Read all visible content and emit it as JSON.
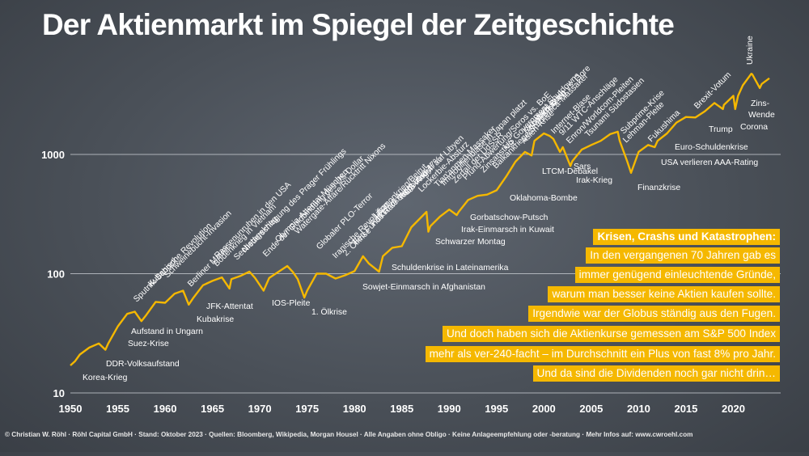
{
  "footer": "© Christian W. Röhl · Röhl Capital GmbH · Stand: Oktober 2023 · Quellen: Bloomberg, Wikipedia, Morgan Housel · Alle Angaben ohne Obligo · Keine Anlageempfehlung oder -beratung · Mehr Infos auf: www.cwroehl.com",
  "colors": {
    "accent": "#f5b800",
    "background": "#4a5058",
    "text": "#ffffff"
  },
  "info_box": {
    "heading": "Krisen, Crashs und Katastrophen:",
    "lines": [
      "In den vergangenen 70 Jahren gab es",
      "immer genügend einleuchtende Gründe,",
      "warum man besser keine Aktien kaufen sollte.",
      "Irgendwie war der Globus ständig aus den Fugen.",
      "Und doch haben sich die Aktienkurse gemessen am S&P 500 Index",
      "mehr als ver-240-facht – im Durchschnitt ein Plus von fast 8% pro Jahr.",
      "Und da sind die Dividenden noch gar nicht drin…"
    ]
  },
  "chart_data": {
    "type": "line",
    "title": "Der Aktienmarkt im Spiegel der Zeitgeschichte",
    "y_scale": "log",
    "ylim": [
      10,
      6000
    ],
    "xlim": [
      1950,
      2025
    ],
    "y_ticks": [
      10,
      100,
      1000
    ],
    "y_tick_labels": [
      "10",
      "100",
      "1000"
    ],
    "x_ticks": [
      1950,
      1955,
      1960,
      1965,
      1970,
      1975,
      1980,
      1985,
      1990,
      1995,
      2000,
      2005,
      2010,
      2015,
      2020
    ],
    "grid": "horizontal",
    "series": [
      {
        "name": "S&P 500",
        "x": [
          1950,
          1950.5,
          1951,
          1952,
          1953,
          1953.7,
          1954,
          1955,
          1956,
          1956.8,
          1957.5,
          1958,
          1959,
          1960,
          1961,
          1961.9,
          1962.5,
          1963,
          1964,
          1965,
          1966,
          1966.8,
          1967,
          1968,
          1968.9,
          1969.5,
          1970.4,
          1971,
          1972,
          1972.9,
          1973.5,
          1974,
          1974.7,
          1975,
          1976,
          1977,
          1978,
          1979,
          1980,
          1980.9,
          1981.5,
          1982.6,
          1983,
          1984,
          1985,
          1986,
          1987.6,
          1987.8,
          1988,
          1989,
          1990,
          1990.8,
          1991,
          1992,
          1993,
          1994,
          1995,
          1996,
          1997,
          1998,
          1998.7,
          1999,
          2000,
          2000.6,
          2001,
          2001.7,
          2002,
          2002.8,
          2003,
          2004,
          2005,
          2006,
          2007,
          2007.8,
          2008,
          2008.8,
          2009.2,
          2010,
          2011,
          2011.7,
          2012,
          2013,
          2014,
          2015,
          2016,
          2017,
          2018,
          2018.9,
          2019,
          2020,
          2020.2,
          2020.5,
          2021,
          2021.9,
          2022,
          2022.8,
          2023,
          2023.8
        ],
        "values": [
          17,
          18.5,
          21,
          24,
          26,
          23,
          26,
          36,
          46,
          48,
          40,
          45,
          58,
          57,
          68,
          72,
          55,
          63,
          80,
          87,
          93,
          75,
          90,
          96,
          104,
          92,
          72,
          92,
          104,
          116,
          103,
          90,
          63,
          72,
          100,
          100,
          91,
          97,
          105,
          140,
          122,
          104,
          140,
          165,
          170,
          245,
          330,
          225,
          250,
          300,
          345,
          310,
          330,
          415,
          450,
          460,
          500,
          650,
          870,
          1050,
          980,
          1300,
          1500,
          1430,
          1350,
          1050,
          1150,
          800,
          880,
          1100,
          1200,
          1300,
          1480,
          1550,
          1300,
          870,
          700,
          1050,
          1200,
          1150,
          1300,
          1500,
          1850,
          2060,
          2040,
          2300,
          2700,
          2400,
          2600,
          3100,
          2400,
          3100,
          3800,
          4750,
          4700,
          3600,
          3900,
          4350
        ]
      }
    ],
    "annotations": [
      {
        "text": "Korea-Krieg",
        "year": 1950.5
      },
      {
        "text": "DDR-Volksaufstand",
        "year": 1953.4
      },
      {
        "text": "Suez-Krise",
        "year": 1956.6
      },
      {
        "text": "Aufstand in Ungarn",
        "year": 1956.9
      },
      {
        "text": "Sputnik-Schock",
        "year": 1957.8
      },
      {
        "text": "Kubanische Revolution",
        "year": 1959.0
      },
      {
        "text": "Schweinebucht-Invasion",
        "year": 1961.3
      },
      {
        "text": "Berliner Mauer",
        "year": 1961.7
      },
      {
        "text": "Kubakrise",
        "year": 1962.8
      },
      {
        "text": "JFK-Attentat",
        "year": 1963.9
      },
      {
        "text": "Bodenkrieg in Vietnam",
        "year": 1965.1
      },
      {
        "text": "Rassenunruhen in den USA",
        "year": 1966.6
      },
      {
        "text": "Sechstagekrieg",
        "year": 1967.4
      },
      {
        "text": "Niederschlagung des Prager Frühlings",
        "year": 1968.6
      },
      {
        "text": "Ende der Goldbindung des US-Dollar",
        "year": 1971.6
      },
      {
        "text": "Olympia-Attentat München",
        "year": 1972.7
      },
      {
        "text": "Watergate-Affäre/Rücktritt Nixons",
        "year": 1974.6
      },
      {
        "text": "1. Ölkrise",
        "year": 1974.0
      },
      {
        "text": "IOS-Pleite",
        "year": 1970.5
      },
      {
        "text": "Globaler PLO-Terror",
        "year": 1976.0
      },
      {
        "text": "Iranische Revolution",
        "year": 1979.0
      },
      {
        "text": "2. Ölkrise",
        "year": 1979.7
      },
      {
        "text": "Fed Funds Rate steigt über 17%",
        "year": 1981.0
      },
      {
        "text": "Falklandkrieg",
        "year": 1982.3
      },
      {
        "text": "Libanonkrieg/Beirut",
        "year": 1982.9
      },
      {
        "text": "Sowjet-Einmarsch in Afghanistan",
        "year": 1980.0
      },
      {
        "text": "Schuldenkrise in Lateinamerika",
        "year": 1982.7
      },
      {
        "text": "Tschernobyl",
        "year": 1986.3
      },
      {
        "text": "US-Angriff auf Libyen",
        "year": 1986.6
      },
      {
        "text": "Schwarzer Montag",
        "year": 1987.8
      },
      {
        "text": "Lockerbie-Absturz",
        "year": 1988.9
      },
      {
        "text": "Tian'anmen-Massaker",
        "year": 1989.4
      },
      {
        "text": "Immobilienblase in Japan platzt",
        "year": 1990.0
      },
      {
        "text": "Zerfall der UdSSR",
        "year": 1991.3
      },
      {
        "text": "Irak-Einmarsch in Kuwait",
        "year": 1990.6
      },
      {
        "text": "Gorbatschow-Putsch",
        "year": 1991.6
      },
      {
        "text": "Pfund-Abwertung/Soros vs. BoE",
        "year": 1992.7
      },
      {
        "text": "Zinsanstieg",
        "year": 1994.2
      },
      {
        "text": "Balkankriege/Srebrenica-Massaker",
        "year": 1995.5
      },
      {
        "text": "Oklahoma-Bombe",
        "year": 1995.3
      },
      {
        "text": "US Government Shutdowns",
        "year": 1996.0
      },
      {
        "text": "Asien-Krise",
        "year": 1997.6
      },
      {
        "text": "Rubel-Krise",
        "year": 1998.6
      },
      {
        "text": "Kosovo-Krieg",
        "year": 1999.2
      },
      {
        "text": "Wahl Bush vs. Gore",
        "year": 2000.8
      },
      {
        "text": "LTCM-Debakel",
        "year": 1998.7
      },
      {
        "text": "Internet-Blase",
        "year": 2000.2
      },
      {
        "text": "9/11 WTC-Anschläge",
        "year": 2001.7
      },
      {
        "text": "Enron/Worldcom-Pleiten",
        "year": 2002.2
      },
      {
        "text": "Sars",
        "year": 2003.2
      },
      {
        "text": "Irak-Krieg",
        "year": 2003.2
      },
      {
        "text": "Tsunami Südostasien",
        "year": 2004.9
      },
      {
        "text": "Subprime-Krise",
        "year": 2007.5
      },
      {
        "text": "Lehman-Pleite",
        "year": 2008.7
      },
      {
        "text": "Finanzkrise",
        "year": 2009.2
      },
      {
        "text": "Fukushima",
        "year": 2011.2
      },
      {
        "text": "USA verlieren AAA-Rating",
        "year": 2011.6
      },
      {
        "text": "Euro-Schuldenkrise",
        "year": 2011.8
      },
      {
        "text": "Brexit-Votum",
        "year": 2016.5
      },
      {
        "text": "Trump",
        "year": 2016.8
      },
      {
        "text": "Corona",
        "year": 2020.2
      },
      {
        "text": "Ukraine",
        "year": 2022.2
      },
      {
        "text": "Zins-",
        "year": 2022.5
      },
      {
        "text": "Wende",
        "year": 2022.5
      }
    ]
  }
}
